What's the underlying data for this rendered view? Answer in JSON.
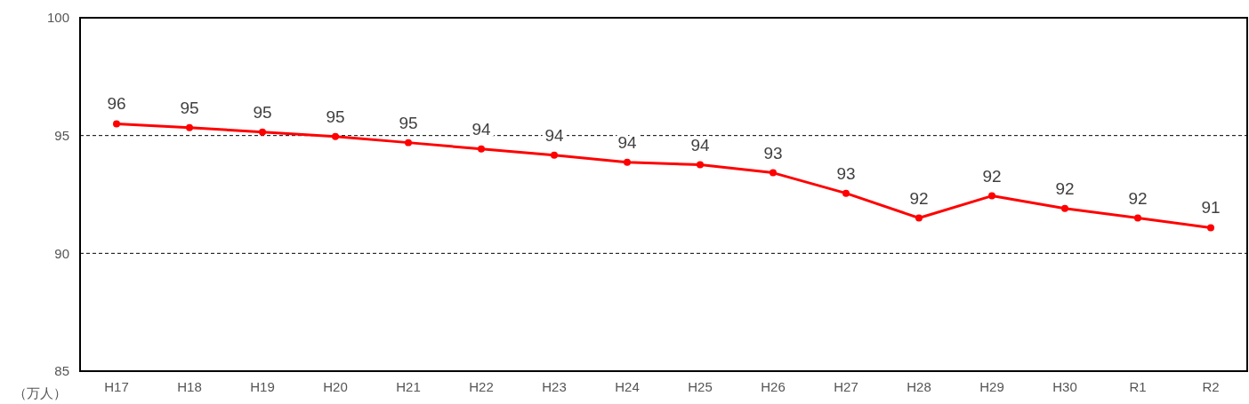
{
  "chart_data": {
    "type": "line",
    "ylabel": "（万人）",
    "categories": [
      "H17",
      "H18",
      "H19",
      "H20",
      "H21",
      "H22",
      "H23",
      "H24",
      "H25",
      "H26",
      "H27",
      "H28",
      "H29",
      "H30",
      "R1",
      "R2"
    ],
    "series": [
      {
        "color": "#ff0000",
        "values": [
          95.5,
          95.34,
          95.15,
          94.96,
          94.7,
          94.43,
          94.17,
          93.87,
          93.76,
          93.42,
          92.55,
          91.5,
          92.44,
          91.91,
          91.5,
          91.09
        ],
        "value_labels": [
          "96",
          "95",
          "95",
          "95",
          "95",
          "94",
          "94",
          "94",
          "94",
          "93",
          "93",
          "92",
          "92",
          "92",
          "92",
          "91"
        ]
      }
    ],
    "ylim": [
      85,
      100
    ],
    "yticks": [
      85,
      90,
      95,
      100
    ],
    "grid": "y",
    "line_style": "solid",
    "marker": "circle"
  }
}
